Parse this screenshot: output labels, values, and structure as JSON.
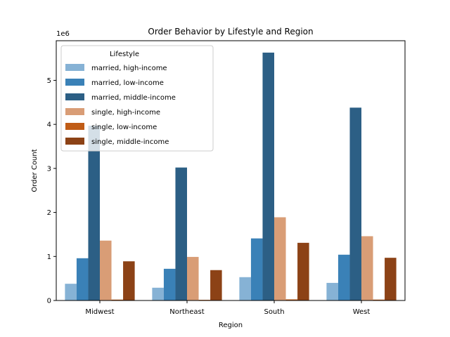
{
  "chart_data": {
    "type": "bar",
    "title": "Order Behavior by Lifestyle and Region",
    "xlabel": "Region",
    "ylabel": "Order Count",
    "y_multiplier_label": "1e6",
    "categories": [
      "Midwest",
      "Northeast",
      "South",
      "West"
    ],
    "ylim": [
      0,
      5.9
    ],
    "yticks": [
      0,
      1,
      2,
      3,
      4,
      5
    ],
    "legend": {
      "title": "Lifestyle",
      "placement": "upper-left"
    },
    "series": [
      {
        "name": "married, high-income",
        "color": "#86b2d5",
        "values": [
          0.38,
          0.29,
          0.53,
          0.4
        ]
      },
      {
        "name": "married, low-income",
        "color": "#3a81b7",
        "values": [
          0.96,
          0.72,
          1.41,
          1.04
        ]
      },
      {
        "name": "married, middle-income",
        "color": "#2c5f85",
        "values": [
          3.97,
          3.02,
          5.63,
          4.38
        ]
      },
      {
        "name": "single, high-income",
        "color": "#d99d76",
        "values": [
          1.36,
          0.99,
          1.89,
          1.46
        ]
      },
      {
        "name": "single, low-income",
        "color": "#c05c16",
        "values": [
          0.02,
          0.015,
          0.025,
          0.02
        ]
      },
      {
        "name": "single, middle-income",
        "color": "#8c4216",
        "values": [
          0.89,
          0.69,
          1.31,
          0.97
        ]
      }
    ]
  }
}
